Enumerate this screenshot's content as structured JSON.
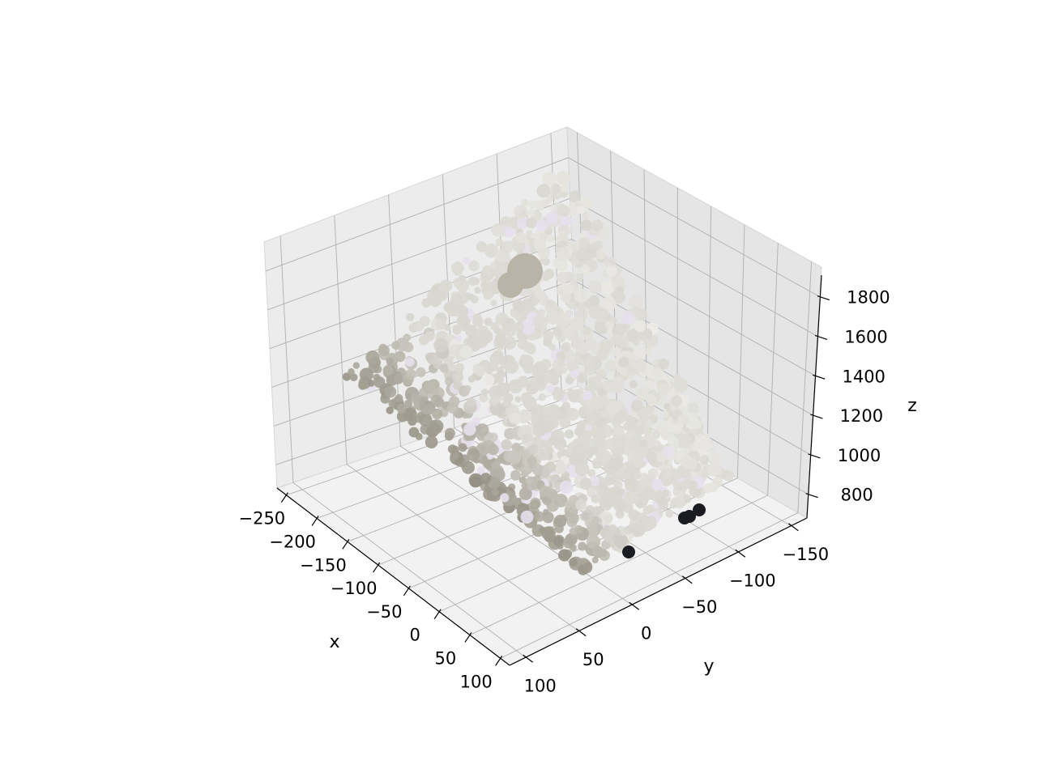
{
  "chart_data": {
    "type": "scatter",
    "projection": "3d",
    "title": "",
    "xlabel": "x",
    "ylabel": "y",
    "zlabel": "z",
    "xlim": [
      -265,
      115
    ],
    "ylim": [
      -165,
      115
    ],
    "zlim": [
      680,
      1950
    ],
    "x_ticks": [
      -250,
      -200,
      -150,
      -100,
      -50,
      0,
      50,
      100
    ],
    "x_tick_labels": [
      "−250",
      "−200",
      "−150",
      "−100",
      "−50",
      "0",
      "50",
      "100"
    ],
    "y_ticks": [
      -150,
      -100,
      -50,
      0,
      50,
      100
    ],
    "y_tick_labels": [
      "−150",
      "−100",
      "−50",
      "0",
      "50",
      "100"
    ],
    "z_ticks": [
      800,
      1000,
      1200,
      1400,
      1600,
      1800
    ],
    "z_tick_labels": [
      "800",
      "1000",
      "1200",
      "1400",
      "1600",
      "1800"
    ],
    "grid": true,
    "legend": "none",
    "point_colors": {
      "main": "#d8d6d0",
      "light": "#ecebe7",
      "shadow": "#8e8a7c",
      "dark": "#1b1b22",
      "tint": "#e6e0ec"
    }
  }
}
